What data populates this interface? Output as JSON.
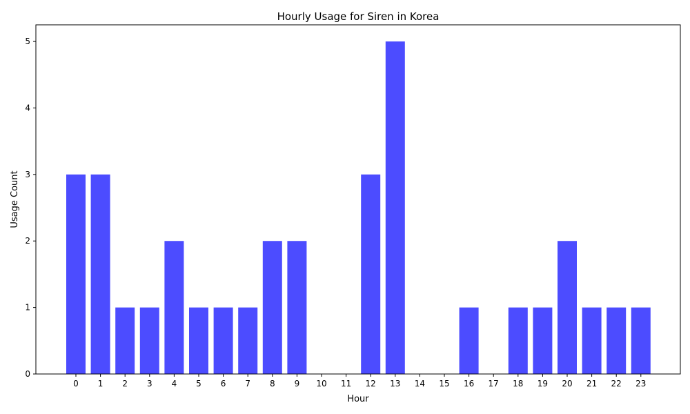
{
  "chart_data": {
    "type": "bar",
    "title": "Hourly Usage for Siren in Korea",
    "xlabel": "Hour",
    "ylabel": "Usage Count",
    "categories": [
      "0",
      "1",
      "2",
      "3",
      "4",
      "5",
      "6",
      "7",
      "8",
      "9",
      "10",
      "11",
      "12",
      "13",
      "14",
      "15",
      "16",
      "17",
      "18",
      "19",
      "20",
      "21",
      "22",
      "23"
    ],
    "values": [
      3,
      3,
      1,
      1,
      2,
      1,
      1,
      1,
      2,
      2,
      0,
      0,
      3,
      5,
      0,
      0,
      1,
      0,
      1,
      1,
      2,
      1,
      1,
      1
    ],
    "ylim": [
      0,
      5.25
    ],
    "yticks": [
      0,
      1,
      2,
      3,
      4,
      5
    ],
    "grid": false,
    "legend": "none",
    "bar_color": "#0000ff"
  }
}
